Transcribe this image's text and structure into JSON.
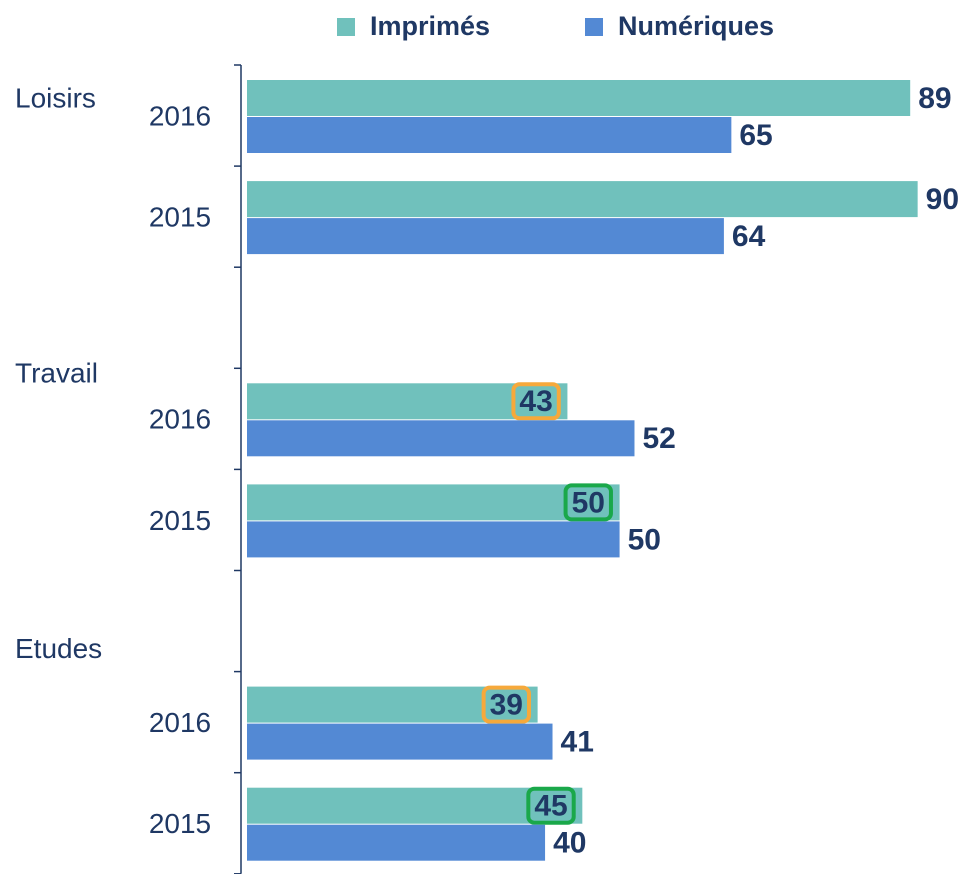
{
  "chart_data": {
    "type": "bar",
    "orientation": "horizontal",
    "groups": [
      "Loisirs",
      "Travail",
      "Etudes"
    ],
    "categories": [
      "2016",
      "2015",
      "2016",
      "2015",
      "2016",
      "2015"
    ],
    "series": [
      {
        "name": "Imprimés",
        "color": "#70c1bc",
        "values": [
          89,
          90,
          43,
          50,
          39,
          45
        ],
        "label_boxes": [
          null,
          null,
          "#f6a93b",
          "#1aa84a",
          "#f6a93b",
          "#1aa84a"
        ]
      },
      {
        "name": "Numériques",
        "color": "#5389d4",
        "values": [
          65,
          64,
          52,
          50,
          41,
          40
        ]
      }
    ],
    "xlim": [
      0,
      93
    ],
    "legend": "top",
    "data_labels": true
  }
}
